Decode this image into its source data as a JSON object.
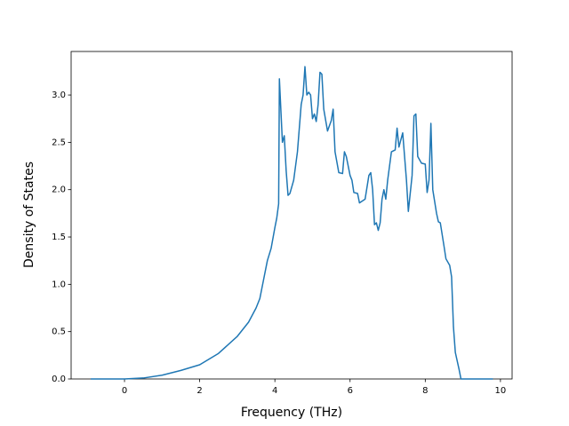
{
  "chart_data": {
    "type": "line",
    "x_label": "Frequency (THz)",
    "y_label": "Density of States",
    "x": [
      -0.9,
      0,
      0.5,
      1,
      1.5,
      2,
      2.5,
      3,
      3.3,
      3.5,
      3.6,
      3.7,
      3.8,
      3.9,
      4.0,
      4.05,
      4.1,
      4.12,
      4.2,
      4.25,
      4.3,
      4.35,
      4.4,
      4.5,
      4.6,
      4.7,
      4.75,
      4.8,
      4.85,
      4.9,
      4.95,
      5.0,
      5.05,
      5.1,
      5.15,
      5.2,
      5.25,
      5.3,
      5.4,
      5.5,
      5.55,
      5.6,
      5.7,
      5.8,
      5.85,
      5.9,
      6.0,
      6.05,
      6.1,
      6.2,
      6.25,
      6.4,
      6.5,
      6.55,
      6.6,
      6.65,
      6.7,
      6.75,
      6.8,
      6.85,
      6.9,
      6.95,
      7.0,
      7.1,
      7.2,
      7.25,
      7.3,
      7.4,
      7.5,
      7.55,
      7.65,
      7.7,
      7.75,
      7.8,
      7.9,
      8.0,
      8.05,
      8.1,
      8.15,
      8.2,
      8.3,
      8.35,
      8.4,
      8.5,
      8.55,
      8.65,
      8.7,
      8.75,
      8.8,
      8.9,
      8.95,
      9.8
    ],
    "series": [
      {
        "color": "#1f77b4",
        "values": [
          0,
          0,
          0.01,
          0.04,
          0.09,
          0.15,
          0.27,
          0.45,
          0.6,
          0.75,
          0.85,
          1.05,
          1.25,
          1.38,
          1.6,
          1.7,
          1.85,
          3.17,
          2.5,
          2.57,
          2.2,
          1.94,
          1.96,
          2.1,
          2.4,
          2.9,
          3.0,
          3.3,
          3.0,
          3.03,
          3.0,
          2.75,
          2.8,
          2.72,
          2.9,
          3.24,
          3.22,
          2.85,
          2.62,
          2.73,
          2.85,
          2.4,
          2.18,
          2.17,
          2.4,
          2.35,
          2.15,
          2.1,
          1.97,
          1.96,
          1.86,
          1.9,
          2.15,
          2.18,
          2.0,
          1.63,
          1.65,
          1.57,
          1.65,
          1.9,
          2.0,
          1.9,
          2.1,
          2.4,
          2.42,
          2.65,
          2.45,
          2.6,
          2.1,
          1.77,
          2.15,
          2.78,
          2.8,
          2.35,
          2.28,
          2.27,
          1.97,
          2.1,
          2.7,
          2.0,
          1.75,
          1.66,
          1.65,
          1.4,
          1.27,
          1.2,
          1.08,
          0.55,
          0.28,
          0.1,
          0,
          0
        ]
      }
    ],
    "xlim": [
      -1.42,
      10.31
    ],
    "ylim": [
      0,
      3.46
    ],
    "xticks": [
      0,
      2,
      4,
      6,
      8,
      10
    ],
    "yticks": [
      {
        "value": 0,
        "label": "0.0"
      },
      {
        "value": 0.5,
        "label": "0.5"
      },
      {
        "value": 1,
        "label": "1.0"
      },
      {
        "value": 1.5,
        "label": "1.5"
      },
      {
        "value": 2,
        "label": "2.0"
      },
      {
        "value": 2.5,
        "label": "2.5"
      },
      {
        "value": 3,
        "label": "3.0"
      }
    ]
  }
}
